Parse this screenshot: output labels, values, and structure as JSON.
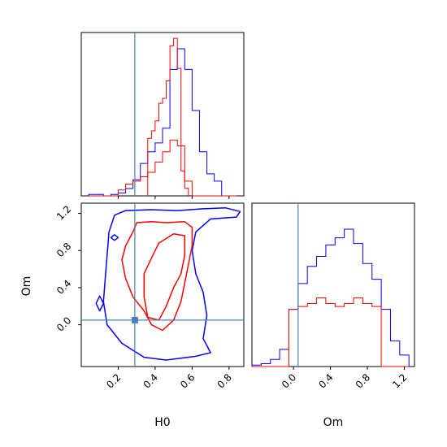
{
  "chart_data": {
    "type": "corner",
    "parameters": [
      "H0",
      "Om"
    ],
    "truth": {
      "H0": 0.29,
      "Om": 0.05
    },
    "colors": {
      "blue": "#0000ff",
      "red": "#ff0000",
      "truth": "#4682b4"
    },
    "axes": {
      "H0": {
        "label": "H0",
        "range": [
          0.0,
          0.88
        ],
        "ticks": [
          0.2,
          0.4,
          0.6,
          0.8
        ],
        "tick_labels": [
          "0.2",
          "0.4",
          "0.6",
          "0.8"
        ]
      },
      "Om": {
        "label": "Om",
        "range": [
          -0.45,
          1.31
        ],
        "ticks": [
          0.0,
          0.4,
          0.8,
          1.2
        ],
        "tick_labels": [
          "0.0",
          "0.4",
          "0.8",
          "1.2"
        ]
      }
    },
    "hist_H0": {
      "bin_edges": [
        0.04,
        0.08,
        0.12,
        0.16,
        0.2,
        0.24,
        0.28,
        0.32,
        0.36,
        0.4,
        0.44,
        0.48,
        0.52,
        0.56,
        0.6,
        0.64,
        0.68,
        0.72,
        0.76,
        0.8,
        0.84
      ],
      "blue": [
        1,
        1,
        0,
        1,
        2,
        5,
        11,
        22,
        30,
        36,
        46,
        86,
        100,
        86,
        58,
        30,
        15,
        10,
        0,
        0
      ],
      "red": [
        0,
        0,
        0,
        0,
        4,
        8,
        10,
        13,
        16,
        23,
        30,
        38,
        34,
        10,
        0,
        0,
        0,
        0,
        0,
        0
      ],
      "red_fine_peak": {
        "edges": [
          0.36,
          0.38,
          0.4,
          0.42,
          0.44,
          0.46,
          0.48,
          0.5,
          0.52,
          0.54,
          0.56,
          0.58
        ],
        "values": [
          23,
          26,
          30,
          37,
          39,
          46,
          60,
          63,
          51,
          10,
          3,
          0
        ]
      }
    },
    "hist_Om": {
      "bin_edges": [
        -0.45,
        -0.35,
        -0.25,
        -0.15,
        -0.05,
        0.05,
        0.15,
        0.25,
        0.35,
        0.45,
        0.55,
        0.65,
        0.75,
        0.85,
        0.95,
        1.05,
        1.15,
        1.25
      ],
      "blue": [
        1,
        2,
        5,
        12,
        40,
        58,
        70,
        77,
        85,
        90,
        96,
        86,
        72,
        61,
        40,
        18,
        8
      ],
      "red": [
        0,
        0,
        0,
        0,
        40,
        42,
        44,
        48,
        44,
        42,
        44,
        48,
        44,
        42,
        0,
        0,
        0
      ]
    },
    "contours_2d": {
      "blue": [
        [
          [
            0.24,
            1.23
          ],
          [
            0.38,
            1.24
          ],
          [
            0.52,
            1.23
          ],
          [
            0.66,
            1.25
          ],
          [
            0.78,
            1.26
          ],
          [
            0.86,
            1.22
          ],
          [
            0.84,
            1.16
          ],
          [
            0.7,
            1.14
          ],
          [
            0.62,
            1.0
          ],
          [
            0.6,
            0.8
          ],
          [
            0.62,
            0.55
          ],
          [
            0.66,
            0.35
          ],
          [
            0.68,
            0.1
          ],
          [
            0.66,
            -0.15
          ],
          [
            0.7,
            -0.3
          ],
          [
            0.62,
            -0.34
          ],
          [
            0.46,
            -0.38
          ],
          [
            0.34,
            -0.35
          ],
          [
            0.22,
            -0.2
          ],
          [
            0.14,
            0.0
          ],
          [
            0.12,
            0.25
          ],
          [
            0.13,
            0.5
          ],
          [
            0.14,
            0.75
          ],
          [
            0.15,
            1.0
          ],
          [
            0.18,
            1.18
          ],
          [
            0.24,
            1.23
          ]
        ],
        [
          [
            0.08,
            0.23
          ],
          [
            0.1,
            0.15
          ],
          [
            0.12,
            0.23
          ],
          [
            0.1,
            0.31
          ],
          [
            0.08,
            0.23
          ]
        ],
        [
          [
            0.16,
            0.94
          ],
          [
            0.18,
            0.91
          ],
          [
            0.2,
            0.94
          ],
          [
            0.18,
            0.97
          ],
          [
            0.16,
            0.94
          ]
        ]
      ],
      "red": [
        [
          [
            0.3,
            1.1
          ],
          [
            0.38,
            1.11
          ],
          [
            0.46,
            1.1
          ],
          [
            0.56,
            1.11
          ],
          [
            0.6,
            1.05
          ],
          [
            0.6,
            0.85
          ],
          [
            0.58,
            0.65
          ],
          [
            0.56,
            0.45
          ],
          [
            0.54,
            0.25
          ],
          [
            0.5,
            0.05
          ],
          [
            0.44,
            -0.06
          ],
          [
            0.38,
            0.0
          ],
          [
            0.34,
            0.15
          ],
          [
            0.28,
            0.3
          ],
          [
            0.24,
            0.5
          ],
          [
            0.22,
            0.7
          ],
          [
            0.24,
            0.85
          ],
          [
            0.28,
            1.0
          ],
          [
            0.3,
            1.1
          ]
        ],
        [
          [
            0.42,
            0.88
          ],
          [
            0.5,
            0.98
          ],
          [
            0.56,
            0.96
          ],
          [
            0.56,
            0.75
          ],
          [
            0.54,
            0.55
          ],
          [
            0.5,
            0.4
          ],
          [
            0.46,
            0.2
          ],
          [
            0.42,
            0.05
          ],
          [
            0.36,
            0.08
          ],
          [
            0.34,
            0.3
          ],
          [
            0.34,
            0.55
          ],
          [
            0.38,
            0.72
          ],
          [
            0.42,
            0.88
          ]
        ]
      ]
    }
  }
}
